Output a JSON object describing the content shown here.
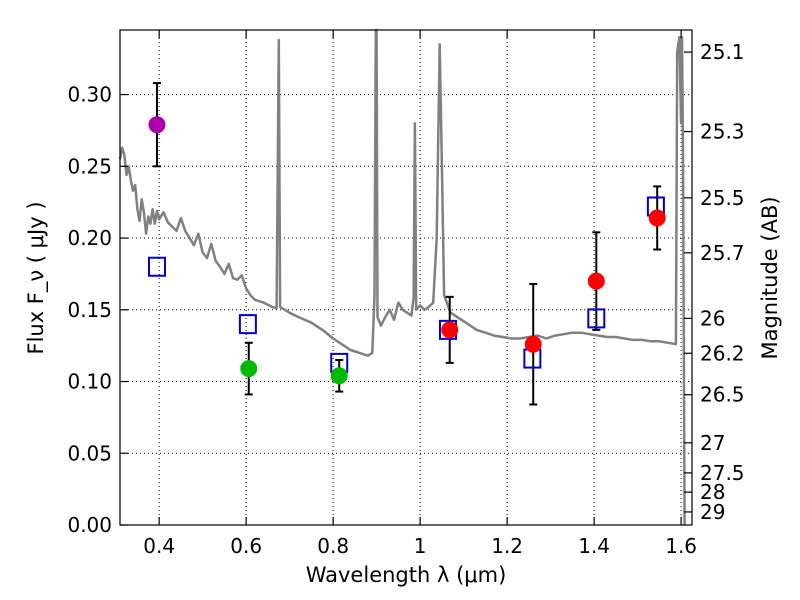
{
  "chart_data": {
    "type": "scatter",
    "xlabel": "Wavelength  λ (μm)",
    "ylabel": "Flux  F_ν  ( μJy )",
    "ylabel_right": "Magnitude (AB)",
    "xlim": [
      0.31,
      1.625
    ],
    "ylim": [
      0.0,
      0.345
    ],
    "x_ticks": [
      0.4,
      0.6,
      0.8,
      1.0,
      1.2,
      1.4,
      1.6
    ],
    "x_tick_labels": [
      "0.4",
      "0.6",
      "0.8",
      "1",
      "1.2",
      "1.4",
      "1.6"
    ],
    "y_ticks": [
      0.0,
      0.05,
      0.1,
      0.15,
      0.2,
      0.25,
      0.3
    ],
    "y_tick_labels": [
      "0.00",
      "0.05",
      "0.10",
      "0.15",
      "0.20",
      "0.25",
      "0.30"
    ],
    "magnitude_ticks": [
      {
        "label": "25.1",
        "flux": 0.3296
      },
      {
        "label": "25.3",
        "flux": 0.2742
      },
      {
        "label": "25.5",
        "flux": 0.228
      },
      {
        "label": "25.7",
        "flux": 0.1897
      },
      {
        "label": "26",
        "flux": 0.144
      },
      {
        "label": "26.2",
        "flux": 0.1197
      },
      {
        "label": "26.5",
        "flux": 0.0908
      },
      {
        "label": "27",
        "flux": 0.0573
      },
      {
        "label": "27.5",
        "flux": 0.0363
      },
      {
        "label": "28",
        "flux": 0.0229
      },
      {
        "label": "29",
        "flux": 0.0091
      }
    ],
    "grid": true,
    "observed": [
      {
        "x": 0.395,
        "y": 0.279,
        "err": 0.029,
        "color": "#aa00aa"
      },
      {
        "x": 0.606,
        "y": 0.109,
        "err": 0.018,
        "color": "#00bb00"
      },
      {
        "x": 0.814,
        "y": 0.104,
        "err": 0.011,
        "color": "#00bb00"
      },
      {
        "x": 1.068,
        "y": 0.136,
        "err": 0.023,
        "color": "#ff0000"
      },
      {
        "x": 1.26,
        "y": 0.126,
        "err": 0.042,
        "color": "#ff0000"
      },
      {
        "x": 1.405,
        "y": 0.17,
        "err": 0.034,
        "color": "#ff0000"
      },
      {
        "x": 1.545,
        "y": 0.214,
        "err": 0.022,
        "color": "#ff0000"
      }
    ],
    "model_points": [
      {
        "x": 0.395,
        "y": 0.18
      },
      {
        "x": 0.604,
        "y": 0.14
      },
      {
        "x": 0.814,
        "y": 0.113
      },
      {
        "x": 1.064,
        "y": 0.136
      },
      {
        "x": 1.258,
        "y": 0.116
      },
      {
        "x": 1.405,
        "y": 0.144
      },
      {
        "x": 1.542,
        "y": 0.222
      }
    ],
    "spectrum": [
      [
        0.31,
        0.255
      ],
      [
        0.315,
        0.263
      ],
      [
        0.32,
        0.258
      ],
      [
        0.325,
        0.244
      ],
      [
        0.33,
        0.25
      ],
      [
        0.335,
        0.24
      ],
      [
        0.34,
        0.233
      ],
      [
        0.345,
        0.237
      ],
      [
        0.35,
        0.22
      ],
      [
        0.355,
        0.212
      ],
      [
        0.36,
        0.227
      ],
      [
        0.365,
        0.218
      ],
      [
        0.37,
        0.203
      ],
      [
        0.375,
        0.215
      ],
      [
        0.38,
        0.21
      ],
      [
        0.385,
        0.22
      ],
      [
        0.39,
        0.21
      ],
      [
        0.395,
        0.219
      ],
      [
        0.4,
        0.213
      ],
      [
        0.41,
        0.218
      ],
      [
        0.42,
        0.211
      ],
      [
        0.43,
        0.208
      ],
      [
        0.44,
        0.205
      ],
      [
        0.45,
        0.214
      ],
      [
        0.46,
        0.205
      ],
      [
        0.47,
        0.2
      ],
      [
        0.48,
        0.195
      ],
      [
        0.49,
        0.203
      ],
      [
        0.5,
        0.19
      ],
      [
        0.51,
        0.186
      ],
      [
        0.52,
        0.196
      ],
      [
        0.53,
        0.184
      ],
      [
        0.54,
        0.18
      ],
      [
        0.55,
        0.175
      ],
      [
        0.56,
        0.182
      ],
      [
        0.57,
        0.172
      ],
      [
        0.58,
        0.171
      ],
      [
        0.59,
        0.174
      ],
      [
        0.6,
        0.165
      ],
      [
        0.61,
        0.16
      ],
      [
        0.62,
        0.157
      ],
      [
        0.64,
        0.155
      ],
      [
        0.66,
        0.152
      ],
      [
        0.67,
        0.151
      ],
      [
        0.675,
        0.338
      ],
      [
        0.678,
        0.152
      ],
      [
        0.7,
        0.148
      ],
      [
        0.72,
        0.145
      ],
      [
        0.75,
        0.141
      ],
      [
        0.78,
        0.135
      ],
      [
        0.8,
        0.13
      ],
      [
        0.82,
        0.126
      ],
      [
        0.84,
        0.122
      ],
      [
        0.86,
        0.12
      ],
      [
        0.88,
        0.118
      ],
      [
        0.89,
        0.12
      ],
      [
        0.895,
        0.16
      ],
      [
        0.898,
        0.345
      ],
      [
        0.9,
        0.345
      ],
      [
        0.902,
        0.145
      ],
      [
        0.91,
        0.139
      ],
      [
        0.92,
        0.145
      ],
      [
        0.93,
        0.15
      ],
      [
        0.94,
        0.143
      ],
      [
        0.95,
        0.155
      ],
      [
        0.96,
        0.15
      ],
      [
        0.97,
        0.148
      ],
      [
        0.98,
        0.146
      ],
      [
        0.985,
        0.158
      ],
      [
        0.988,
        0.28
      ],
      [
        0.991,
        0.15
      ],
      [
        1.0,
        0.153
      ],
      [
        1.01,
        0.15
      ],
      [
        1.02,
        0.152
      ],
      [
        1.03,
        0.155
      ],
      [
        1.038,
        0.2
      ],
      [
        1.045,
        0.335
      ],
      [
        1.05,
        0.25
      ],
      [
        1.055,
        0.16
      ],
      [
        1.07,
        0.148
      ],
      [
        1.09,
        0.144
      ],
      [
        1.11,
        0.14
      ],
      [
        1.13,
        0.136
      ],
      [
        1.15,
        0.134
      ],
      [
        1.17,
        0.132
      ],
      [
        1.19,
        0.131
      ],
      [
        1.21,
        0.13
      ],
      [
        1.23,
        0.13
      ],
      [
        1.25,
        0.131
      ],
      [
        1.27,
        0.132
      ],
      [
        1.29,
        0.13
      ],
      [
        1.31,
        0.132
      ],
      [
        1.33,
        0.133
      ],
      [
        1.35,
        0.134
      ],
      [
        1.37,
        0.134
      ],
      [
        1.39,
        0.133
      ],
      [
        1.41,
        0.132
      ],
      [
        1.43,
        0.131
      ],
      [
        1.45,
        0.131
      ],
      [
        1.47,
        0.13
      ],
      [
        1.49,
        0.129
      ],
      [
        1.51,
        0.129
      ],
      [
        1.53,
        0.128
      ],
      [
        1.55,
        0.128
      ],
      [
        1.57,
        0.127
      ],
      [
        1.588,
        0.126
      ],
      [
        1.591,
        0.33
      ],
      [
        1.596,
        0.34
      ],
      [
        1.6,
        0.28
      ],
      [
        1.602,
        0.34
      ],
      [
        1.604,
        0.27
      ],
      [
        1.608,
        0.0
      ]
    ]
  }
}
